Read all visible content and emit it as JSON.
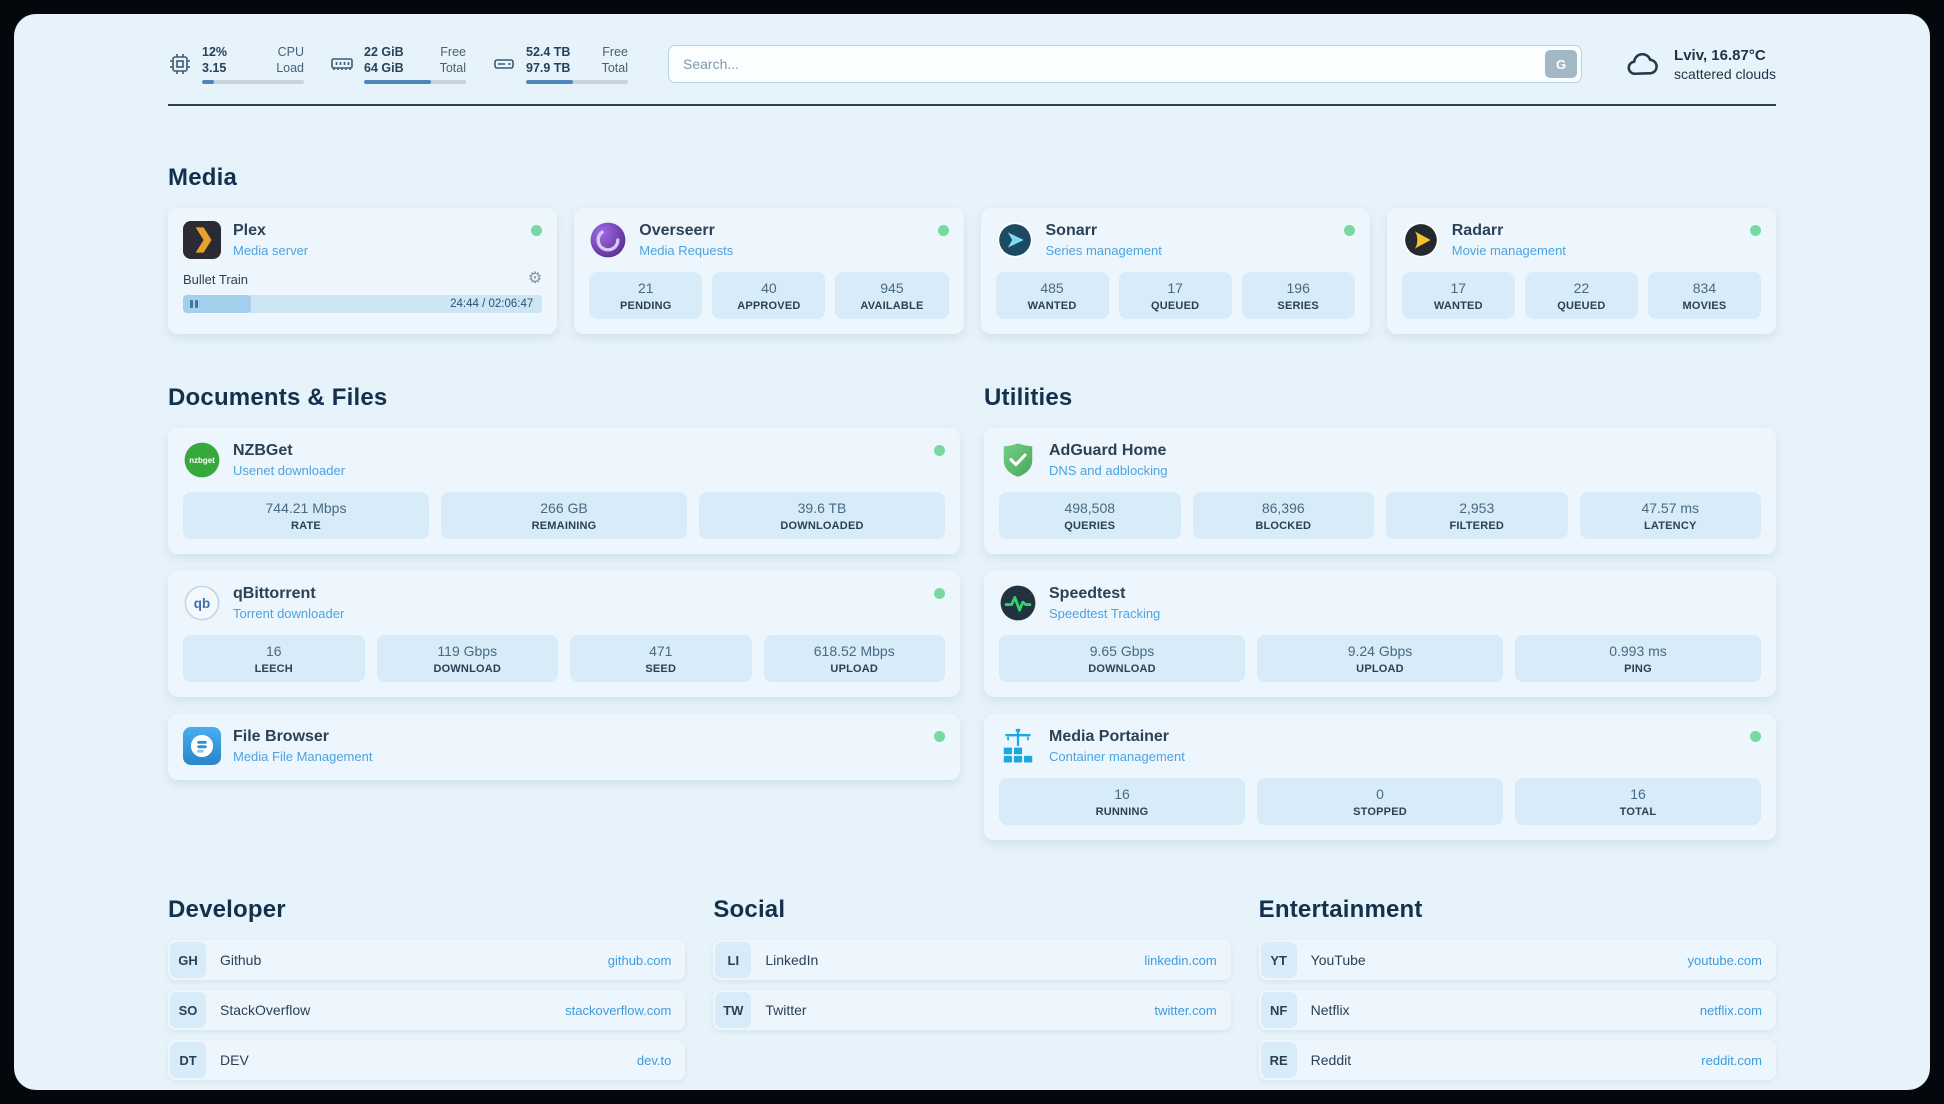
{
  "colors": {
    "page_background": "#e7f3fa",
    "card_background": "#edf6fc",
    "stat_box_background": "#d7ebf8",
    "accent_blue": "#3e9bdd",
    "status_online_green": "#79d8a2",
    "text_dark": "#2b4156"
  },
  "topbar": {
    "cpu": {
      "icon": "cpu-chip-icon",
      "row1_value": "12%",
      "row1_label": "CPU",
      "row2_value": "3.15",
      "row2_label": "Load",
      "progress_pct": 12
    },
    "ram": {
      "icon": "memory-icon",
      "row1_value": "22 GiB",
      "row1_label": "Free",
      "row2_value": "64 GiB",
      "row2_label": "Total",
      "progress_pct": 66
    },
    "disk": {
      "icon": "hard-drive-icon",
      "row1_value": "52.4 TB",
      "row1_label": "Free",
      "row2_value": "97.9 TB",
      "row2_label": "Total",
      "progress_pct": 46
    },
    "search": {
      "placeholder": "Search...",
      "provider_button": "G"
    },
    "weather": {
      "icon": "cloud-icon",
      "location": "Lviv, 16.87°C",
      "condition": "scattered clouds"
    }
  },
  "sections": {
    "media": {
      "title": "Media",
      "cards": [
        {
          "icon": "plex-icon",
          "title": "Plex",
          "subtitle": "Media server",
          "status": "online",
          "player": {
            "track": "Bullet Train",
            "time": "24:44 / 02:06:47",
            "progress_pct": 19
          }
        },
        {
          "icon": "overseerr-icon",
          "title": "Overseerr",
          "subtitle": "Media Requests",
          "status": "online",
          "stats": [
            {
              "value": "21",
              "label": "PENDING"
            },
            {
              "value": "40",
              "label": "APPROVED"
            },
            {
              "value": "945",
              "label": "AVAILABLE"
            }
          ]
        },
        {
          "icon": "sonarr-icon",
          "title": "Sonarr",
          "subtitle": "Series management",
          "status": "online",
          "stats": [
            {
              "value": "485",
              "label": "WANTED"
            },
            {
              "value": "17",
              "label": "QUEUED"
            },
            {
              "value": "196",
              "label": "SERIES"
            }
          ]
        },
        {
          "icon": "radarr-icon",
          "title": "Radarr",
          "subtitle": "Movie management",
          "status": "online",
          "stats": [
            {
              "value": "17",
              "label": "WANTED"
            },
            {
              "value": "22",
              "label": "QUEUED"
            },
            {
              "value": "834",
              "label": "MOVIES"
            }
          ]
        }
      ]
    },
    "documents": {
      "title": "Documents & Files",
      "cards": [
        {
          "icon": "nzbget-icon",
          "title": "NZBGet",
          "subtitle": "Usenet downloader",
          "status": "online",
          "stats": [
            {
              "value": "744.21 Mbps",
              "label": "RATE"
            },
            {
              "value": "266 GB",
              "label": "REMAINING"
            },
            {
              "value": "39.6 TB",
              "label": "DOWNLOADED"
            }
          ]
        },
        {
          "icon": "qbittorrent-icon",
          "title": "qBittorrent",
          "subtitle": "Torrent downloader",
          "status": "online",
          "stats": [
            {
              "value": "16",
              "label": "LEECH"
            },
            {
              "value": "119 Gbps",
              "label": "DOWNLOAD"
            },
            {
              "value": "471",
              "label": "SEED"
            },
            {
              "value": "618.52 Mbps",
              "label": "UPLOAD"
            }
          ]
        },
        {
          "icon": "filebrowser-icon",
          "title": "File Browser",
          "subtitle": "Media File Management",
          "status": "online",
          "stats": []
        }
      ]
    },
    "utilities": {
      "title": "Utilities",
      "cards": [
        {
          "icon": "adguard-icon",
          "title": "AdGuard Home",
          "subtitle": "DNS and adblocking",
          "status": "hidden",
          "stats": [
            {
              "value": "498,508",
              "label": "QUERIES"
            },
            {
              "value": "86,396",
              "label": "BLOCKED"
            },
            {
              "value": "2,953",
              "label": "FILTERED"
            },
            {
              "value": "47.57 ms",
              "label": "LATENCY"
            }
          ]
        },
        {
          "icon": "speedtest-icon",
          "title": "Speedtest",
          "subtitle": "Speedtest Tracking",
          "status": "hidden",
          "stats": [
            {
              "value": "9.65 Gbps",
              "label": "DOWNLOAD"
            },
            {
              "value": "9.24 Gbps",
              "label": "UPLOAD"
            },
            {
              "value": "0.993 ms",
              "label": "PING"
            }
          ]
        },
        {
          "icon": "portainer-icon",
          "title": "Media Portainer",
          "subtitle": "Container management",
          "status": "online",
          "stats": [
            {
              "value": "16",
              "label": "RUNNING"
            },
            {
              "value": "0",
              "label": "STOPPED"
            },
            {
              "value": "16",
              "label": "TOTAL"
            }
          ]
        }
      ]
    },
    "bookmarks": [
      {
        "title": "Developer",
        "links": [
          {
            "abbr": "GH",
            "name": "Github",
            "url": "github.com"
          },
          {
            "abbr": "SO",
            "name": "StackOverflow",
            "url": "stackoverflow.com"
          },
          {
            "abbr": "DT",
            "name": "DEV",
            "url": "dev.to"
          }
        ]
      },
      {
        "title": "Social",
        "links": [
          {
            "abbr": "LI",
            "name": "LinkedIn",
            "url": "linkedin.com"
          },
          {
            "abbr": "TW",
            "name": "Twitter",
            "url": "twitter.com"
          }
        ]
      },
      {
        "title": "Entertainment",
        "links": [
          {
            "abbr": "YT",
            "name": "YouTube",
            "url": "youtube.com"
          },
          {
            "abbr": "NF",
            "name": "Netflix",
            "url": "netflix.com"
          },
          {
            "abbr": "RE",
            "name": "Reddit",
            "url": "reddit.com"
          }
        ]
      }
    ]
  }
}
